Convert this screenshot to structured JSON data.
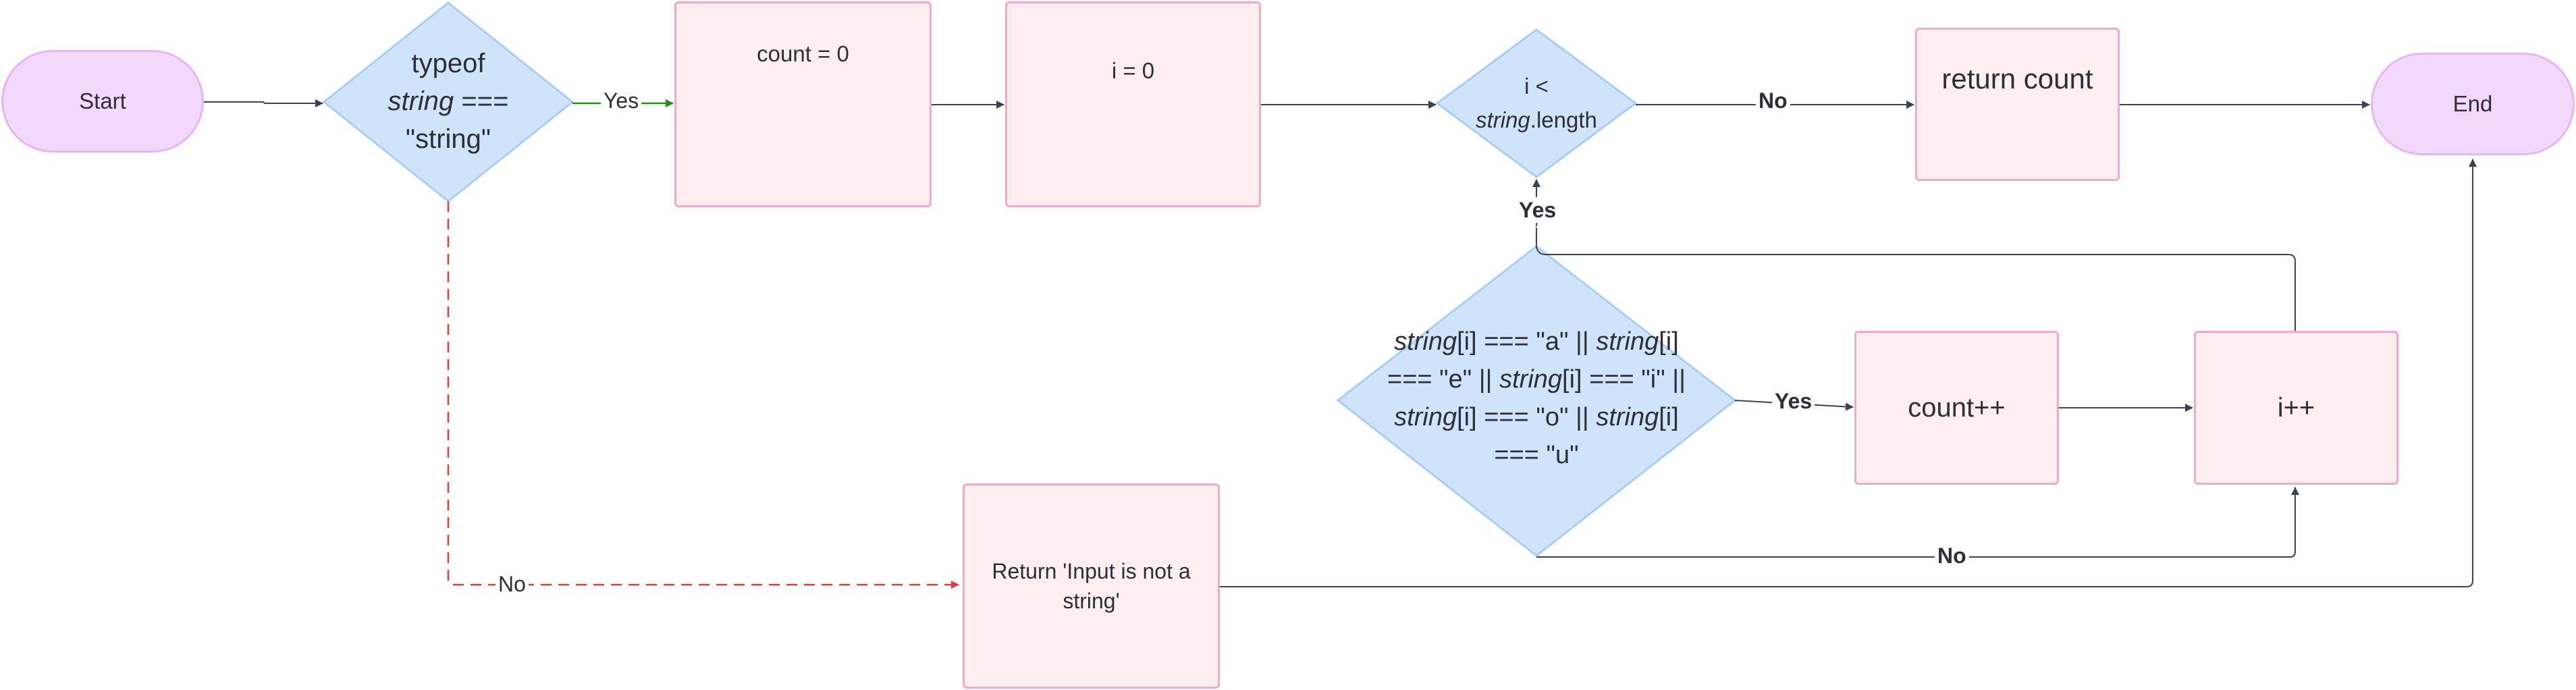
{
  "nodes": {
    "start": "Start",
    "check_type": {
      "line1": "typeof",
      "italic": "string",
      "rest": " ===",
      "line3": "\"string\""
    },
    "count_init": "count = 0",
    "i_init": "i = 0",
    "loop_check": {
      "prefix": "i <",
      "italic": "string",
      "suffix": ".length"
    },
    "return_count": "return count",
    "end": "End",
    "vowel_check": {
      "parts": [
        "string",
        "[i] === \"a\" || ",
        "string",
        "[i] === \"e\" || ",
        "string",
        "[i] === \"i\" || ",
        "string",
        "[i] === \"o\" || ",
        "string",
        "[i] === \"u\""
      ]
    },
    "count_increment": "count++",
    "i_increment": "i++",
    "return_error": "Return 'Input is not a string'"
  },
  "edges": {
    "type_yes": "Yes",
    "type_no": "No",
    "loop_no": "No",
    "loop_yes": "Yes",
    "vowel_yes": "Yes",
    "vowel_no": "No"
  },
  "colors": {
    "terminal_fill": "#f2d9fb",
    "process_fill": "#fdeff0",
    "decision_fill": "#cfe4fb",
    "decision_stroke": "#a8cdf5",
    "line": "#3d4250",
    "yes_green": "#2a8a1f",
    "no_red": "#e03a3a"
  }
}
